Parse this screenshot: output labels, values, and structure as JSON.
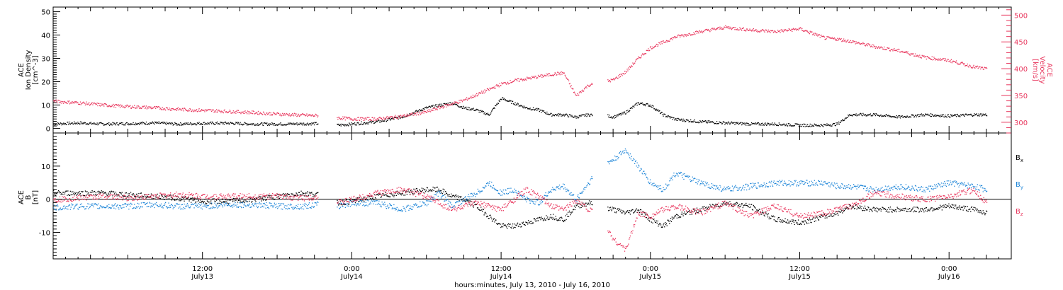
{
  "figure": {
    "xlabel": "hours:minutes, July 13, 2010 - July 16, 2010",
    "x_ticks": [
      {
        "time": "12:00",
        "day": "July13",
        "hours": 12
      },
      {
        "time": "0:00",
        "day": "July14",
        "hours": 24
      },
      {
        "time": "12:00",
        "day": "July14",
        "hours": 36
      },
      {
        "time": "0:00",
        "day": "July15",
        "hours": 48
      },
      {
        "time": "12:00",
        "day": "July15",
        "hours": 60
      },
      {
        "time": "0:00",
        "day": "July16",
        "hours": 72
      }
    ],
    "xlim_hours": [
      0,
      77
    ]
  },
  "colors": {
    "black": "#000000",
    "pink": "#e8365d",
    "blue": "#1f86d8"
  },
  "chart_data": [
    {
      "type": "scatter",
      "panel": "top",
      "ylabel_left": [
        "ACE",
        "Ion Density",
        "[cm^-3]"
      ],
      "ylabel_right": [
        "ACE",
        "Velocity",
        "[km/s]"
      ],
      "ylim_left": [
        -2,
        52
      ],
      "yticks_left": [
        "0",
        "10",
        "20",
        "30",
        "40",
        "50"
      ],
      "ylim_right": [
        280,
        515
      ],
      "yticks_right": [
        "300",
        "350",
        "400",
        "450",
        "500"
      ],
      "series": [
        {
          "axis": "left",
          "color": "#000000",
          "x": [
            0,
            2,
            4,
            6,
            8,
            10,
            12,
            14,
            16,
            18,
            20,
            21.3,
            22.8,
            24,
            26,
            28,
            30,
            31,
            32,
            33,
            34,
            35,
            36,
            37,
            38,
            39,
            40,
            41,
            42,
            43,
            44,
            45,
            46,
            47,
            48,
            49,
            50,
            52,
            54,
            56,
            58,
            60,
            62,
            63,
            64,
            66,
            68,
            70,
            72,
            74,
            75
          ],
          "y": [
            2,
            2.5,
            2,
            2.2,
            2.5,
            2,
            2.3,
            2.4,
            2,
            2,
            2.1,
            2.2,
            1.5,
            2,
            3,
            5,
            9,
            10,
            11,
            9,
            8,
            6,
            13,
            11,
            9,
            8,
            6,
            6,
            5,
            6,
            6,
            5,
            7,
            11,
            10,
            6,
            4,
            3,
            2.5,
            2,
            2,
            1.5,
            1.5,
            2,
            6,
            6,
            5,
            6,
            5.5,
            6,
            6
          ]
        },
        {
          "axis": "right",
          "color": "#e8365d",
          "x": [
            0,
            2,
            4,
            6,
            8,
            10,
            12,
            14,
            16,
            18,
            20,
            21.3,
            22.8,
            24,
            26,
            28,
            30,
            31,
            32,
            33,
            34,
            35,
            36,
            37,
            38,
            39,
            40,
            41,
            42,
            43,
            44,
            45,
            46,
            47,
            48,
            49,
            50,
            52,
            54,
            56,
            58,
            60,
            62,
            63,
            64,
            66,
            68,
            70,
            72,
            74,
            75
          ],
          "y": [
            340,
            337,
            333,
            330,
            328,
            325,
            323,
            321,
            319,
            316,
            314,
            313,
            309,
            307,
            307,
            312,
            320,
            328,
            335,
            342,
            352,
            362,
            372,
            378,
            382,
            386,
            390,
            393,
            350,
            370,
            375,
            380,
            395,
            420,
            440,
            450,
            460,
            470,
            478,
            473,
            470,
            475,
            458,
            456,
            452,
            442,
            434,
            422,
            416,
            404,
            400
          ]
        }
      ]
    },
    {
      "type": "scatter",
      "panel": "bottom",
      "ylabel_left": [
        "ACE",
        "B",
        "[nT]"
      ],
      "ylim": [
        -18,
        20
      ],
      "yticks": [
        "-10",
        "0",
        "10"
      ],
      "series": [
        {
          "name": "Bx",
          "color": "#000000",
          "x": [
            0,
            2,
            4,
            6,
            8,
            10,
            12,
            14,
            16,
            18,
            20,
            21.3,
            22.8,
            24,
            26,
            28,
            30,
            31,
            32,
            33,
            34,
            35,
            36,
            37,
            38,
            39,
            40,
            41,
            42,
            43,
            44,
            45,
            46,
            47,
            48,
            49,
            50,
            52,
            54,
            56,
            58,
            60,
            62,
            63,
            64,
            66,
            68,
            70,
            72,
            74,
            75
          ],
          "y": [
            2,
            2,
            2,
            1.5,
            1,
            0.5,
            -0.5,
            -0.5,
            0,
            1,
            2,
            1.5,
            -1,
            -0.5,
            1,
            2,
            3,
            3,
            1,
            0,
            -2,
            -5,
            -8,
            -8,
            -7,
            -6,
            -5,
            -6,
            -2,
            -1,
            -2,
            -3,
            -4,
            -3,
            -6,
            -8,
            -5,
            -3,
            -1,
            -2,
            -6,
            -7,
            -5,
            -4,
            -2,
            -3,
            -3,
            -3,
            -2,
            -3,
            -4
          ]
        },
        {
          "name": "By",
          "color": "#1f86d8",
          "x": [
            0,
            2,
            4,
            6,
            8,
            10,
            12,
            14,
            16,
            18,
            20,
            21.3,
            22.8,
            24,
            26,
            28,
            30,
            31,
            32,
            33,
            34,
            35,
            36,
            37,
            38,
            39,
            40,
            41,
            42,
            43,
            44,
            45,
            46,
            47,
            48,
            49,
            50,
            52,
            54,
            56,
            58,
            60,
            62,
            63,
            64,
            66,
            68,
            70,
            72,
            74,
            75
          ],
          "y": [
            -2.5,
            -2,
            -2,
            -2,
            -1.5,
            -2,
            -2,
            -1.5,
            -1.5,
            -2,
            -2,
            -1.5,
            -2,
            -1,
            -1,
            -3,
            -1,
            2,
            -2,
            0,
            2,
            5,
            2,
            3,
            0,
            -1,
            3,
            4,
            0,
            5,
            10,
            12,
            15,
            10,
            5,
            3,
            8,
            5,
            3,
            4,
            5,
            5,
            5,
            4,
            4,
            3,
            4,
            3,
            5,
            4,
            3
          ]
        },
        {
          "name": "Bz",
          "color": "#e8365d",
          "x": [
            0,
            2,
            4,
            6,
            8,
            10,
            12,
            14,
            16,
            18,
            20,
            21.3,
            22.8,
            24,
            26,
            28,
            30,
            31,
            32,
            33,
            34,
            35,
            36,
            37,
            38,
            39,
            40,
            41,
            42,
            43,
            44,
            45,
            46,
            47,
            48,
            49,
            50,
            52,
            54,
            56,
            58,
            60,
            62,
            63,
            64,
            66,
            68,
            70,
            72,
            74,
            75
          ],
          "y": [
            0,
            0.5,
            1,
            0.5,
            1,
            1.5,
            1,
            1,
            1,
            1,
            0.5,
            1,
            -1,
            0,
            2,
            3,
            1,
            -1,
            -3,
            -2,
            -1,
            -2,
            -3,
            0,
            3,
            1,
            -2,
            -3,
            0,
            -3,
            -5,
            -12,
            -15,
            -4,
            -5,
            -3,
            -2,
            -4,
            -1,
            -5,
            -2,
            -5,
            -4,
            -3,
            -2,
            2,
            1,
            0,
            1,
            3,
            -1
          ]
        }
      ],
      "legend": [
        "B",
        "B",
        "B"
      ],
      "legend_sub": [
        "x",
        "y",
        "z"
      ]
    }
  ]
}
